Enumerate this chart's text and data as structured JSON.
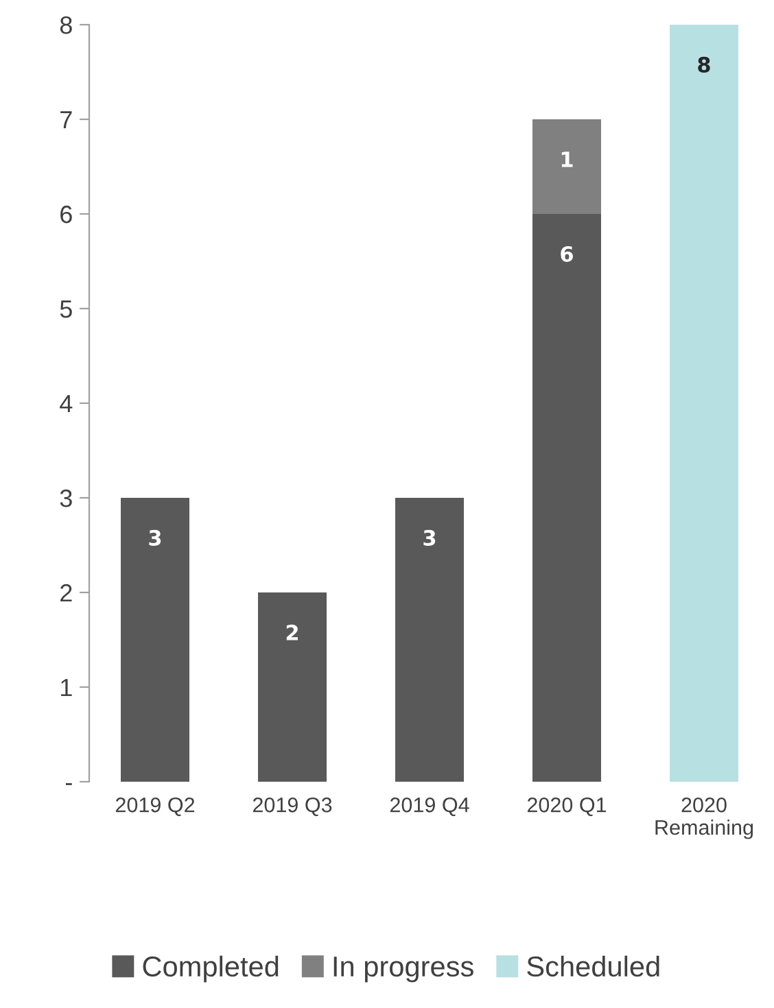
{
  "chart_data": {
    "type": "bar",
    "stacked": true,
    "categories": [
      "2019 Q2",
      "2019 Q3",
      "2019 Q4",
      "2020 Q1",
      "2020\nRemaining"
    ],
    "series": [
      {
        "name": "Completed",
        "color": "#595959",
        "values": [
          3,
          2,
          3,
          6,
          null
        ]
      },
      {
        "name": "In progress",
        "color": "#808080",
        "values": [
          null,
          null,
          null,
          1,
          null
        ]
      },
      {
        "name": "Scheduled",
        "color": "#b7e0e3",
        "values": [
          null,
          null,
          null,
          null,
          8
        ]
      }
    ],
    "ylim": [
      0,
      8
    ],
    "yticks": [
      {
        "value": 0,
        "label": "-"
      },
      1,
      2,
      3,
      4,
      5,
      6,
      7,
      8
    ],
    "data_labels": true,
    "grid": false,
    "legend": "bottom"
  }
}
